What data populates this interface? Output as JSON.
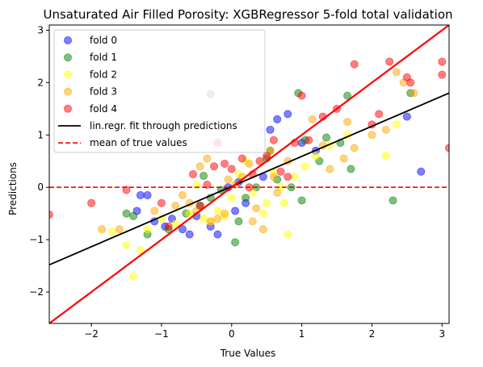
{
  "chart_data": {
    "type": "scatter",
    "title": "Unsaturated Air Filled Porosity: XGBRegressor 5-fold total validation",
    "xlabel": "True Values",
    "ylabel": "Predictions",
    "xlim": [
      -2.6,
      3.1
    ],
    "ylim": [
      -2.6,
      3.1
    ],
    "xticks": [
      -2,
      -1,
      0,
      1,
      2,
      3
    ],
    "yticks": [
      -2,
      -1,
      0,
      1,
      2,
      3
    ],
    "grid": false,
    "legend_position": "top-left",
    "colors": {
      "fold 0": "#0000ff",
      "fold 1": "#008000",
      "fold 2": "#ffff00",
      "fold 3": "#ffa500",
      "fold 4": "#ff0000",
      "regression_line": "#000000",
      "identity_line": "#ff0000",
      "mean_line": "#ff0000"
    },
    "series": [
      {
        "name": "fold 0",
        "points": [
          [
            -1.3,
            -0.15
          ],
          [
            -1.2,
            -0.15
          ],
          [
            -1.35,
            -0.45
          ],
          [
            -1.1,
            -0.65
          ],
          [
            -0.95,
            -0.75
          ],
          [
            -0.85,
            -0.6
          ],
          [
            -0.7,
            -0.8
          ],
          [
            -0.6,
            -0.9
          ],
          [
            -0.5,
            -0.55
          ],
          [
            -0.3,
            -0.75
          ],
          [
            -0.2,
            -0.9
          ],
          [
            0.05,
            -0.45
          ],
          [
            0.2,
            -0.3
          ],
          [
            0.45,
            0.2
          ],
          [
            0.55,
            1.1
          ],
          [
            0.65,
            1.3
          ],
          [
            0.8,
            1.4
          ],
          [
            1.0,
            0.85
          ],
          [
            1.2,
            0.7
          ],
          [
            2.5,
            1.35
          ],
          [
            2.7,
            0.3
          ],
          [
            -0.05,
            0.0
          ],
          [
            0.1,
            0.1
          ]
        ]
      },
      {
        "name": "fold 1",
        "points": [
          [
            -0.3,
            1.78
          ],
          [
            -1.5,
            -0.5
          ],
          [
            -1.4,
            -0.55
          ],
          [
            -1.2,
            -0.9
          ],
          [
            -0.9,
            -0.8
          ],
          [
            -0.65,
            -0.5
          ],
          [
            -0.45,
            -0.35
          ],
          [
            -0.4,
            0.22
          ],
          [
            -0.3,
            -0.2
          ],
          [
            -0.15,
            -0.05
          ],
          [
            0.05,
            -1.05
          ],
          [
            0.1,
            -0.65
          ],
          [
            0.2,
            -0.2
          ],
          [
            0.35,
            0.0
          ],
          [
            0.5,
            0.55
          ],
          [
            0.55,
            0.7
          ],
          [
            0.65,
            0.15
          ],
          [
            0.85,
            0.0
          ],
          [
            0.95,
            1.8
          ],
          [
            1.05,
            0.9
          ],
          [
            1.25,
            0.5
          ],
          [
            1.35,
            0.95
          ],
          [
            1.55,
            0.85
          ],
          [
            1.65,
            1.75
          ],
          [
            1.7,
            0.35
          ],
          [
            2.3,
            -0.25
          ],
          [
            2.55,
            1.8
          ],
          [
            1.0,
            -0.25
          ]
        ]
      },
      {
        "name": "fold 2",
        "points": [
          [
            -1.7,
            -0.85
          ],
          [
            -1.5,
            -1.1
          ],
          [
            -1.4,
            -1.7
          ],
          [
            -1.3,
            -1.2
          ],
          [
            -1.2,
            -0.8
          ],
          [
            -1.0,
            -0.6
          ],
          [
            -0.8,
            -0.7
          ],
          [
            -0.6,
            -0.5
          ],
          [
            -0.4,
            -0.6
          ],
          [
            -0.3,
            -0.65
          ],
          [
            -0.2,
            -0.45
          ],
          [
            -0.1,
            -0.55
          ],
          [
            0.0,
            -0.2
          ],
          [
            0.1,
            0.25
          ],
          [
            0.2,
            0.5
          ],
          [
            0.3,
            -0.1
          ],
          [
            0.45,
            -0.5
          ],
          [
            0.5,
            -0.3
          ],
          [
            0.6,
            0.3
          ],
          [
            0.7,
            0.0
          ],
          [
            0.75,
            -0.3
          ],
          [
            0.8,
            -0.9
          ],
          [
            0.9,
            0.2
          ],
          [
            1.05,
            0.4
          ],
          [
            1.2,
            0.6
          ],
          [
            1.4,
            0.8
          ],
          [
            1.65,
            1.0
          ],
          [
            2.2,
            0.6
          ],
          [
            2.35,
            1.2
          ],
          [
            -0.5,
            0.05
          ]
        ]
      },
      {
        "name": "fold 3",
        "points": [
          [
            -1.85,
            -0.8
          ],
          [
            -1.6,
            -0.8
          ],
          [
            -1.1,
            -0.45
          ],
          [
            -0.8,
            -0.35
          ],
          [
            -0.6,
            -0.3
          ],
          [
            -0.5,
            -0.45
          ],
          [
            -0.45,
            0.4
          ],
          [
            -0.35,
            0.55
          ],
          [
            -0.3,
            -0.65
          ],
          [
            -0.2,
            -0.6
          ],
          [
            -0.1,
            -0.5
          ],
          [
            -0.05,
            0.15
          ],
          [
            0.05,
            0.05
          ],
          [
            0.15,
            0.2
          ],
          [
            0.25,
            0.45
          ],
          [
            0.3,
            -0.65
          ],
          [
            0.35,
            -0.4
          ],
          [
            0.45,
            -0.8
          ],
          [
            0.55,
            0.7
          ],
          [
            0.6,
            0.2
          ],
          [
            0.65,
            -0.1
          ],
          [
            0.8,
            0.5
          ],
          [
            1.15,
            1.3
          ],
          [
            1.3,
            0.8
          ],
          [
            1.4,
            0.35
          ],
          [
            1.6,
            0.55
          ],
          [
            1.65,
            1.25
          ],
          [
            1.75,
            0.75
          ],
          [
            2.0,
            1.0
          ],
          [
            2.2,
            1.1
          ],
          [
            2.35,
            2.2
          ],
          [
            2.45,
            2.0
          ],
          [
            2.6,
            1.8
          ],
          [
            -0.7,
            -0.15
          ]
        ]
      },
      {
        "name": "fold 4",
        "points": [
          [
            -2.6,
            -0.52
          ],
          [
            -2.0,
            -0.3
          ],
          [
            -1.5,
            -0.05
          ],
          [
            -1.0,
            -0.3
          ],
          [
            -0.9,
            -0.75
          ],
          [
            -0.55,
            0.25
          ],
          [
            -0.45,
            -0.35
          ],
          [
            -0.35,
            0.05
          ],
          [
            -0.25,
            0.4
          ],
          [
            -0.2,
            0.85
          ],
          [
            -0.1,
            0.45
          ],
          [
            0.0,
            0.35
          ],
          [
            0.15,
            0.55
          ],
          [
            0.25,
            0.0
          ],
          [
            0.3,
            0.25
          ],
          [
            0.4,
            0.5
          ],
          [
            0.5,
            0.6
          ],
          [
            0.6,
            0.9
          ],
          [
            0.7,
            0.3
          ],
          [
            0.8,
            0.2
          ],
          [
            0.9,
            0.85
          ],
          [
            1.0,
            1.75
          ],
          [
            1.1,
            0.9
          ],
          [
            1.3,
            1.35
          ],
          [
            1.5,
            1.5
          ],
          [
            1.75,
            2.35
          ],
          [
            2.0,
            1.2
          ],
          [
            2.1,
            1.4
          ],
          [
            2.25,
            2.4
          ],
          [
            2.5,
            2.1
          ],
          [
            2.55,
            2.0
          ],
          [
            3.0,
            2.4
          ],
          [
            3.0,
            2.15
          ],
          [
            3.1,
            0.75
          ]
        ]
      }
    ],
    "lines": [
      {
        "name": "lin.regr. fit through predictions",
        "style": "solid",
        "color": "#000000",
        "x": [
          -2.6,
          3.1
        ],
        "y": [
          -1.48,
          1.8
        ]
      },
      {
        "name": "identity",
        "style": "solid",
        "color": "#ff0000",
        "x": [
          -2.6,
          3.1
        ],
        "y": [
          -2.6,
          3.1
        ]
      },
      {
        "name": "mean of true values",
        "style": "dashed",
        "color": "#ff0000",
        "y_value": 0.0
      }
    ],
    "legend": [
      "fold 0",
      "fold 1",
      "fold 2",
      "fold 3",
      "fold 4",
      "lin.regr. fit through predictions",
      "mean of true values"
    ]
  }
}
